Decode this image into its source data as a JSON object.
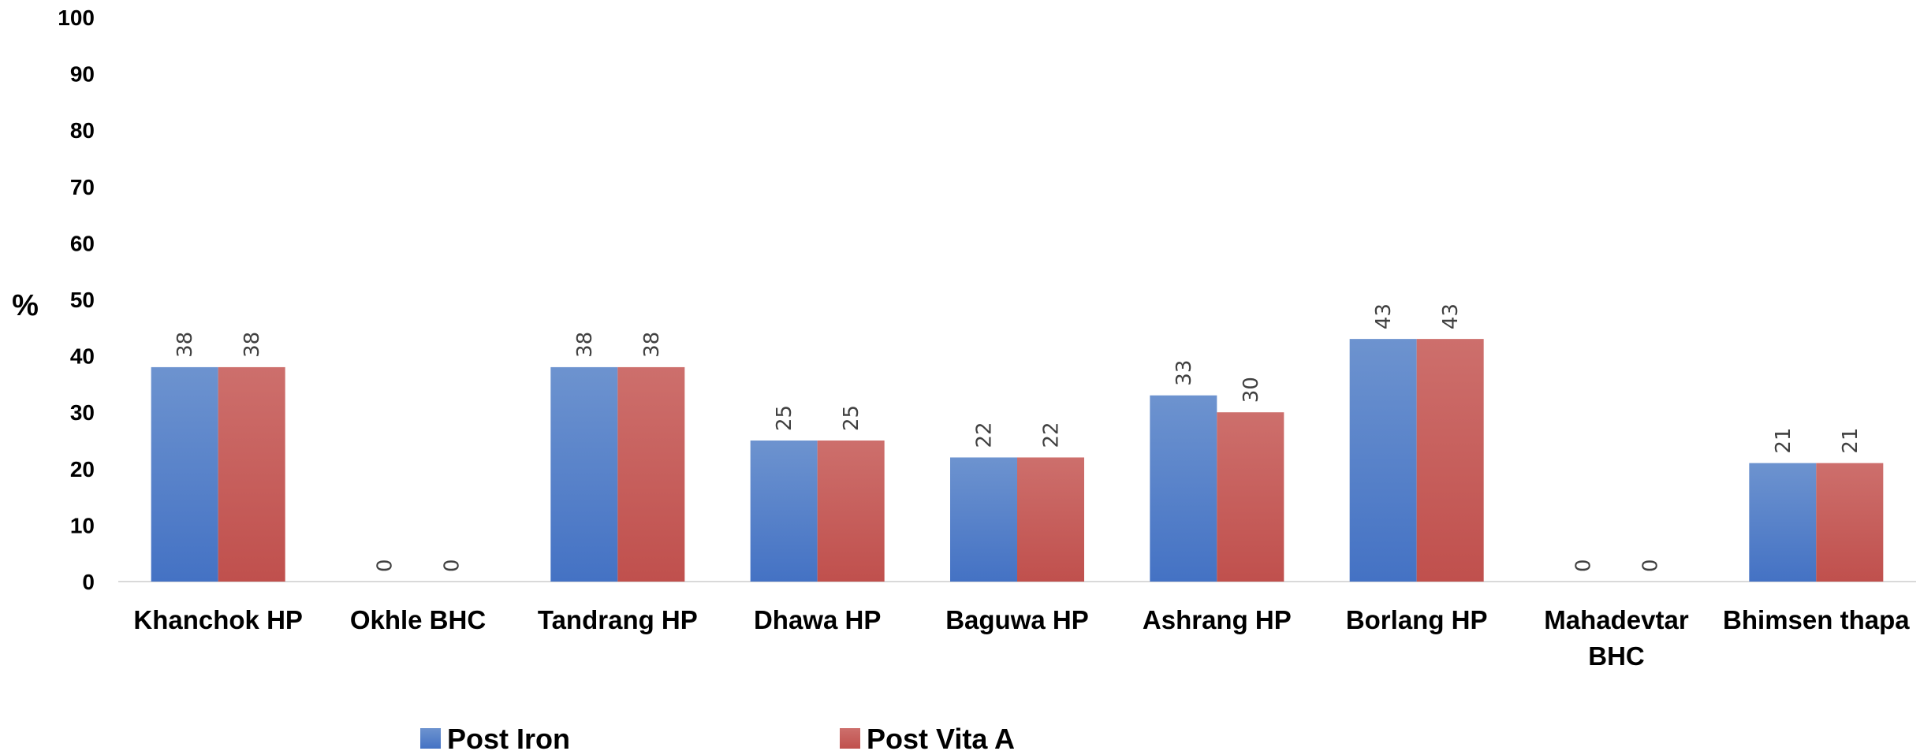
{
  "chart_data": {
    "type": "bar",
    "ylabel": "%",
    "xlabel": "",
    "ylim": [
      0,
      100
    ],
    "yticks": [
      "0",
      "10",
      "20",
      "30",
      "40",
      "50",
      "60",
      "70",
      "80",
      "90",
      "100"
    ],
    "categories": [
      [
        "Khanchok HP"
      ],
      [
        "Okhle BHC"
      ],
      [
        "Tandrang HP"
      ],
      [
        "Dhawa HP"
      ],
      [
        "Baguwa HP"
      ],
      [
        "Ashrang HP"
      ],
      [
        "Borlang HP"
      ],
      [
        "Mahadevtar",
        "BHC"
      ],
      [
        "Bhimsen thapa"
      ]
    ],
    "series": [
      {
        "name": "Post Iron",
        "color": "#4472C4",
        "values": [
          38,
          0,
          38,
          25,
          22,
          33,
          43,
          0,
          21
        ]
      },
      {
        "name": "Post Vita A",
        "color": "#C0504D",
        "values": [
          38,
          0,
          38,
          25,
          22,
          30,
          43,
          0,
          21
        ]
      }
    ],
    "grid": false,
    "legend": "bottom"
  }
}
